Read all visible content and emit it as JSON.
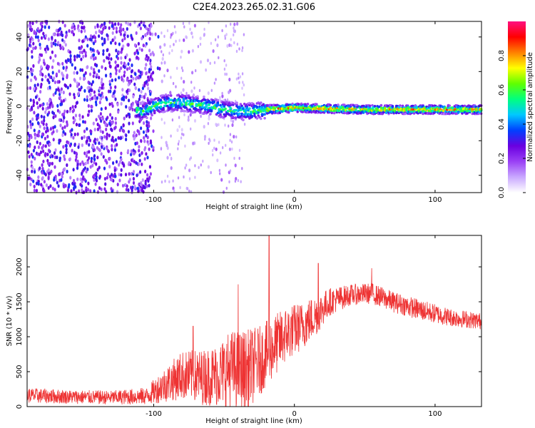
{
  "title": "C2E4.2023.265.02.31.G06",
  "chart_data": [
    {
      "type": "heatmap",
      "xlabel": "Height of straight line (km)",
      "ylabel": "Frequency (Hz)",
      "xlim": [
        -190,
        133
      ],
      "ylim": [
        -50,
        49
      ],
      "x_ticks": [
        -100,
        0,
        100
      ],
      "y_ticks": [
        -40,
        -20,
        0,
        20,
        40
      ],
      "colorbar": {
        "label": "Normalized spectral amplitude",
        "range": [
          0,
          1
        ],
        "ticks": [
          0.0,
          0.2,
          0.4,
          0.6,
          0.8
        ],
        "colors": [
          "#ffffff",
          "#c9a8ff",
          "#9a40f5",
          "#6a00e0",
          "#0040ff",
          "#00c8ff",
          "#00ff80",
          "#60ff00",
          "#ffff00",
          "#ff8000",
          "#ff0000",
          "#ff1080"
        ]
      },
      "ridge": [
        {
          "x": -110,
          "f": -4
        },
        {
          "x": -100,
          "f": 0
        },
        {
          "x": -90,
          "f": 2
        },
        {
          "x": -80,
          "f": 2
        },
        {
          "x": -70,
          "f": 1
        },
        {
          "x": -60,
          "f": 0
        },
        {
          "x": -50,
          "f": -2
        },
        {
          "x": -40,
          "f": -3
        },
        {
          "x": -30,
          "f": -3
        },
        {
          "x": -20,
          "f": -2
        },
        {
          "x": 0,
          "f": -1
        },
        {
          "x": 50,
          "f": -2
        },
        {
          "x": 100,
          "f": -2
        },
        {
          "x": 133,
          "f": -2
        }
      ]
    },
    {
      "type": "line",
      "xlabel": "Height of straight line (km)",
      "ylabel": "SNR (10 * v/v)",
      "xlim": [
        -190,
        133
      ],
      "ylim": [
        0,
        2450
      ],
      "x_ticks": [
        -100,
        0,
        100
      ],
      "y_ticks": [
        0,
        500,
        1000,
        1500,
        2000
      ],
      "color": "#ee3333",
      "envelope": [
        {
          "x": -190,
          "base": 160,
          "spread": 220
        },
        {
          "x": -160,
          "base": 140,
          "spread": 200
        },
        {
          "x": -130,
          "base": 130,
          "spread": 200
        },
        {
          "x": -105,
          "base": 150,
          "spread": 250
        },
        {
          "x": -95,
          "base": 280,
          "spread": 450
        },
        {
          "x": -80,
          "base": 450,
          "spread": 700
        },
        {
          "x": -65,
          "base": 420,
          "spread": 800
        },
        {
          "x": -55,
          "base": 450,
          "spread": 900
        },
        {
          "x": -45,
          "base": 550,
          "spread": 1100
        },
        {
          "x": -35,
          "base": 500,
          "spread": 1200
        },
        {
          "x": -25,
          "base": 650,
          "spread": 1000
        },
        {
          "x": -15,
          "base": 850,
          "spread": 900
        },
        {
          "x": -5,
          "base": 1050,
          "spread": 800
        },
        {
          "x": 5,
          "base": 1150,
          "spread": 700
        },
        {
          "x": 15,
          "base": 1300,
          "spread": 600
        },
        {
          "x": 25,
          "base": 1500,
          "spread": 400
        },
        {
          "x": 40,
          "base": 1600,
          "spread": 300
        },
        {
          "x": 55,
          "base": 1620,
          "spread": 300
        },
        {
          "x": 70,
          "base": 1500,
          "spread": 300
        },
        {
          "x": 90,
          "base": 1380,
          "spread": 300
        },
        {
          "x": 110,
          "base": 1280,
          "spread": 260
        },
        {
          "x": 133,
          "base": 1220,
          "spread": 240
        }
      ],
      "spikes": [
        {
          "x": -18,
          "y": 2450
        },
        {
          "x": 17,
          "y": 2050
        },
        {
          "x": 55,
          "y": 1980
        },
        {
          "x": -40,
          "y": 1750
        },
        {
          "x": -72,
          "y": 1150
        }
      ]
    }
  ]
}
